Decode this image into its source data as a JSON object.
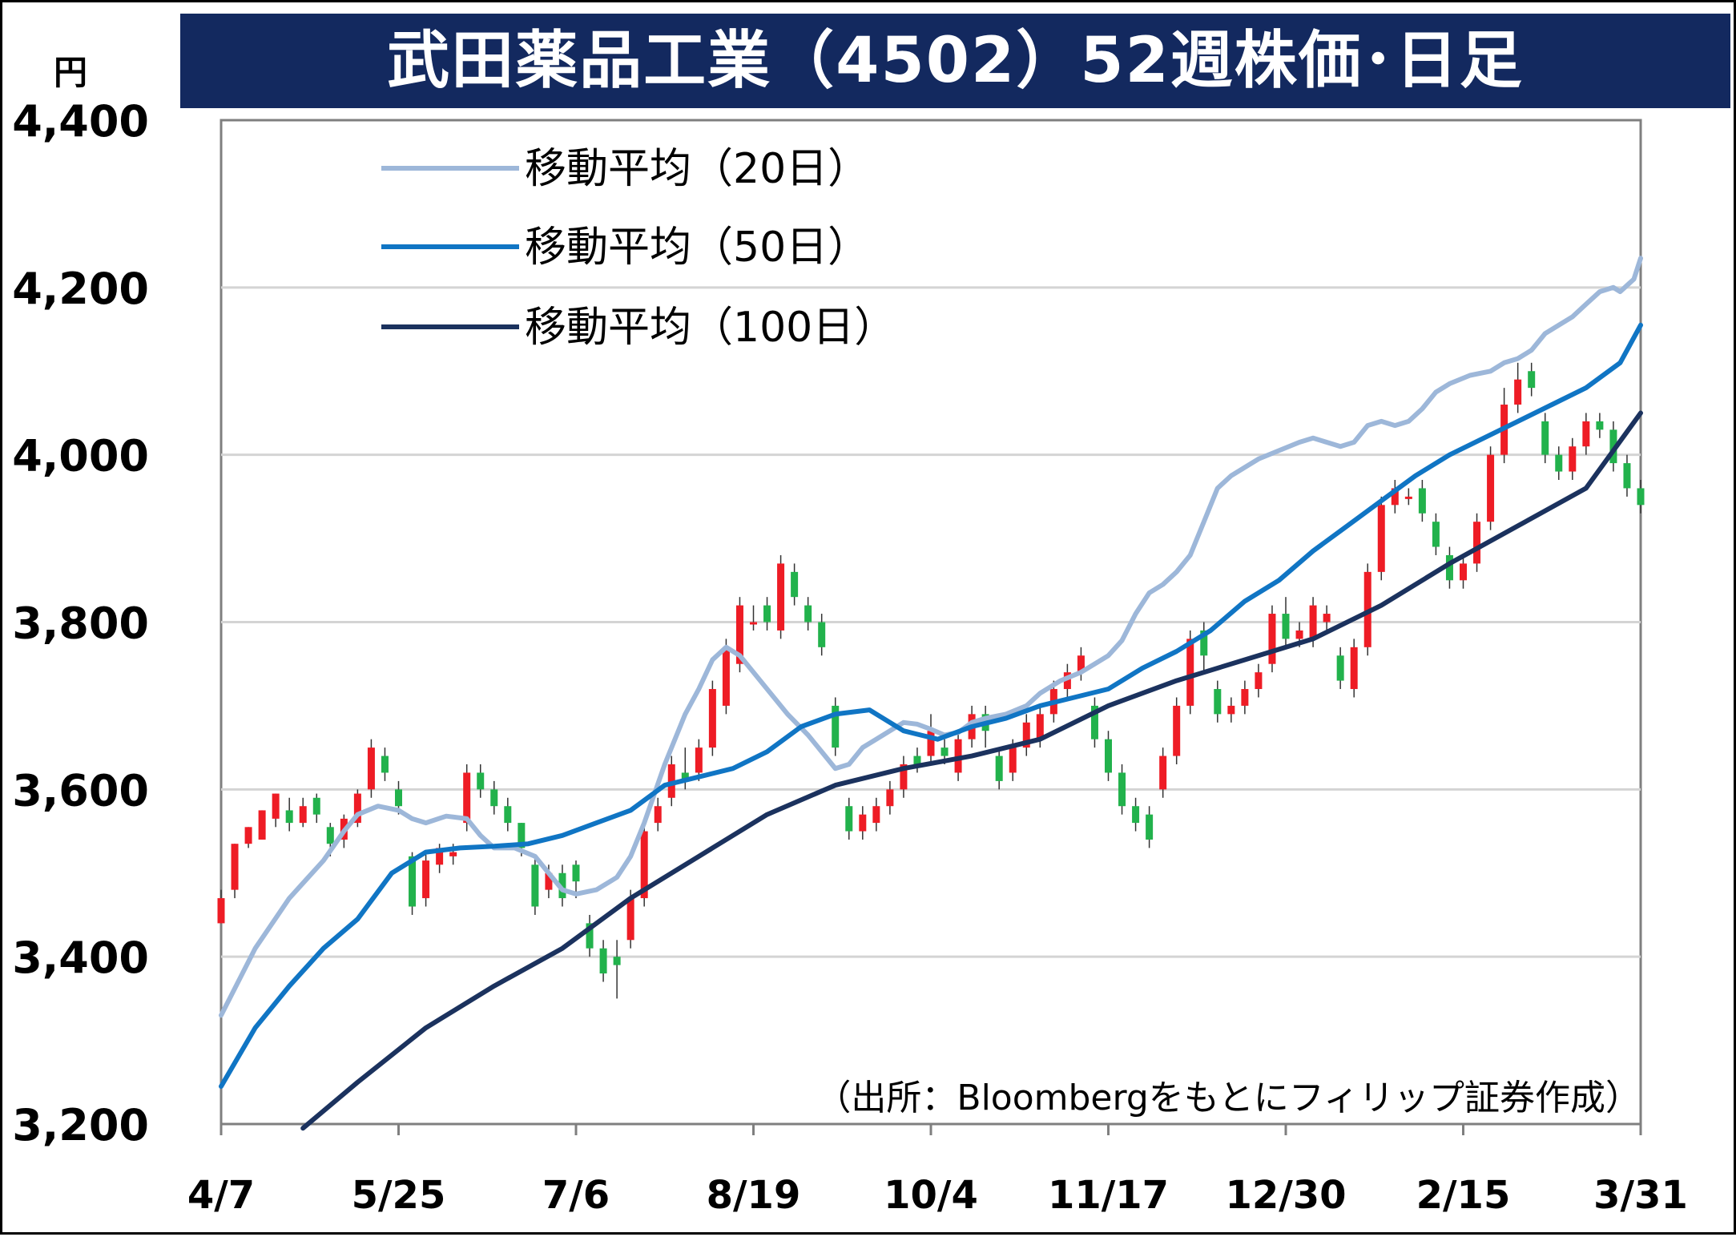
{
  "chart_data": {
    "type": "candlestick",
    "title": "武田薬品工業（4502）52週株価･日足",
    "unit": "円",
    "ylim": [
      3200,
      4400
    ],
    "yticks": [
      "3,200",
      "3,400",
      "3,600",
      "3,800",
      "4,000",
      "4,200",
      "4,400"
    ],
    "ytick_values": [
      3200,
      3400,
      3600,
      3800,
      4000,
      4200,
      4400
    ],
    "xticks": [
      "4/7",
      "5/25",
      "7/6",
      "8/19",
      "10/4",
      "11/17",
      "12/30",
      "2/15",
      "3/31"
    ],
    "grid": true,
    "legend_position": "top-left",
    "series": [
      {
        "name": "移動平均（20日）",
        "color": "#9db7d9",
        "values": [
          [
            0,
            3330
          ],
          [
            5,
            3410
          ],
          [
            10,
            3470
          ],
          [
            15,
            3515
          ],
          [
            18,
            3550
          ],
          [
            20,
            3570
          ],
          [
            23,
            3580
          ],
          [
            26,
            3575
          ],
          [
            28,
            3565
          ],
          [
            30,
            3560
          ],
          [
            33,
            3568
          ],
          [
            36,
            3565
          ],
          [
            38,
            3545
          ],
          [
            40,
            3530
          ],
          [
            43,
            3530
          ],
          [
            46,
            3520
          ],
          [
            48,
            3500
          ],
          [
            50,
            3480
          ],
          [
            52,
            3475
          ],
          [
            55,
            3480
          ],
          [
            58,
            3495
          ],
          [
            60,
            3520
          ],
          [
            62,
            3560
          ],
          [
            65,
            3630
          ],
          [
            68,
            3690
          ],
          [
            70,
            3720
          ],
          [
            72,
            3755
          ],
          [
            74,
            3770
          ],
          [
            76,
            3760
          ],
          [
            78,
            3740
          ],
          [
            80,
            3720
          ],
          [
            83,
            3690
          ],
          [
            86,
            3665
          ],
          [
            88,
            3645
          ],
          [
            90,
            3625
          ],
          [
            92,
            3630
          ],
          [
            94,
            3650
          ],
          [
            96,
            3660
          ],
          [
            98,
            3670
          ],
          [
            100,
            3680
          ],
          [
            102,
            3678
          ],
          [
            104,
            3672
          ],
          [
            106,
            3665
          ],
          [
            108,
            3668
          ],
          [
            110,
            3680
          ],
          [
            112,
            3685
          ],
          [
            115,
            3690
          ],
          [
            118,
            3700
          ],
          [
            120,
            3715
          ],
          [
            123,
            3730
          ],
          [
            126,
            3740
          ],
          [
            128,
            3750
          ],
          [
            130,
            3760
          ],
          [
            132,
            3778
          ],
          [
            134,
            3810
          ],
          [
            136,
            3835
          ],
          [
            138,
            3845
          ],
          [
            140,
            3860
          ],
          [
            142,
            3880
          ],
          [
            144,
            3920
          ],
          [
            146,
            3960
          ],
          [
            148,
            3975
          ],
          [
            150,
            3985
          ],
          [
            152,
            3995
          ],
          [
            155,
            4005
          ],
          [
            158,
            4015
          ],
          [
            160,
            4020
          ],
          [
            162,
            4015
          ],
          [
            164,
            4010
          ],
          [
            166,
            4015
          ],
          [
            168,
            4035
          ],
          [
            170,
            4040
          ],
          [
            172,
            4035
          ],
          [
            174,
            4040
          ],
          [
            176,
            4055
          ],
          [
            178,
            4075
          ],
          [
            180,
            4085
          ],
          [
            183,
            4095
          ],
          [
            186,
            4100
          ],
          [
            188,
            4110
          ],
          [
            190,
            4115
          ],
          [
            192,
            4125
          ],
          [
            194,
            4145
          ],
          [
            196,
            4155
          ],
          [
            198,
            4165
          ],
          [
            200,
            4180
          ],
          [
            202,
            4195
          ],
          [
            204,
            4200
          ],
          [
            205,
            4195
          ],
          [
            207,
            4210
          ],
          [
            208,
            4235
          ]
        ]
      },
      {
        "name": "移動平均（50日）",
        "color": "#1075c4",
        "values": [
          [
            0,
            3245
          ],
          [
            5,
            3315
          ],
          [
            10,
            3365
          ],
          [
            15,
            3410
          ],
          [
            20,
            3445
          ],
          [
            25,
            3500
          ],
          [
            30,
            3525
          ],
          [
            35,
            3530
          ],
          [
            40,
            3532
          ],
          [
            45,
            3535
          ],
          [
            50,
            3545
          ],
          [
            55,
            3560
          ],
          [
            60,
            3575
          ],
          [
            65,
            3605
          ],
          [
            70,
            3615
          ],
          [
            75,
            3625
          ],
          [
            80,
            3645
          ],
          [
            85,
            3675
          ],
          [
            90,
            3690
          ],
          [
            95,
            3695
          ],
          [
            100,
            3670
          ],
          [
            105,
            3660
          ],
          [
            110,
            3675
          ],
          [
            115,
            3685
          ],
          [
            120,
            3700
          ],
          [
            125,
            3710
          ],
          [
            130,
            3720
          ],
          [
            135,
            3745
          ],
          [
            140,
            3765
          ],
          [
            145,
            3790
          ],
          [
            150,
            3825
          ],
          [
            155,
            3850
          ],
          [
            160,
            3885
          ],
          [
            165,
            3915
          ],
          [
            170,
            3945
          ],
          [
            175,
            3975
          ],
          [
            180,
            4000
          ],
          [
            185,
            4020
          ],
          [
            190,
            4040
          ],
          [
            195,
            4060
          ],
          [
            200,
            4080
          ],
          [
            205,
            4110
          ],
          [
            208,
            4155
          ]
        ]
      },
      {
        "name": "移動平均（100日）",
        "color": "#1b325e",
        "values": [
          [
            12,
            3195
          ],
          [
            20,
            3250
          ],
          [
            30,
            3315
          ],
          [
            40,
            3365
          ],
          [
            50,
            3410
          ],
          [
            60,
            3470
          ],
          [
            70,
            3520
          ],
          [
            80,
            3570
          ],
          [
            90,
            3605
          ],
          [
            100,
            3625
          ],
          [
            110,
            3640
          ],
          [
            120,
            3660
          ],
          [
            130,
            3700
          ],
          [
            140,
            3730
          ],
          [
            150,
            3755
          ],
          [
            160,
            3780
          ],
          [
            170,
            3820
          ],
          [
            180,
            3870
          ],
          [
            190,
            3915
          ],
          [
            200,
            3960
          ],
          [
            208,
            4050
          ]
        ]
      }
    ],
    "candles_ohlc": [
      [
        0,
        3440,
        3470,
        3440,
        3480
      ],
      [
        2,
        3480,
        3535,
        3470,
        3535
      ],
      [
        4,
        3535,
        3555,
        3530,
        3555
      ],
      [
        6,
        3540,
        3575,
        3540,
        3575
      ],
      [
        8,
        3565,
        3595,
        3555,
        3595
      ],
      [
        10,
        3575,
        3560,
        3550,
        3590
      ],
      [
        12,
        3560,
        3580,
        3555,
        3590
      ],
      [
        14,
        3590,
        3570,
        3560,
        3595
      ],
      [
        16,
        3555,
        3535,
        3520,
        3560
      ],
      [
        18,
        3540,
        3565,
        3530,
        3570
      ],
      [
        20,
        3560,
        3595,
        3555,
        3600
      ],
      [
        22,
        3600,
        3650,
        3590,
        3660
      ],
      [
        24,
        3640,
        3620,
        3610,
        3650
      ],
      [
        26,
        3600,
        3580,
        3570,
        3610
      ],
      [
        28,
        3520,
        3460,
        3450,
        3525
      ],
      [
        30,
        3470,
        3515,
        3460,
        3525
      ],
      [
        32,
        3510,
        3530,
        3500,
        3535
      ],
      [
        34,
        3520,
        3525,
        3510,
        3535
      ],
      [
        36,
        3560,
        3620,
        3550,
        3630
      ],
      [
        38,
        3620,
        3600,
        3590,
        3630
      ],
      [
        40,
        3600,
        3580,
        3570,
        3610
      ],
      [
        42,
        3580,
        3560,
        3550,
        3590
      ],
      [
        44,
        3560,
        3530,
        3520,
        3560
      ],
      [
        46,
        3510,
        3460,
        3450,
        3520
      ],
      [
        48,
        3480,
        3500,
        3470,
        3510
      ],
      [
        50,
        3500,
        3470,
        3460,
        3510
      ],
      [
        52,
        3510,
        3490,
        3470,
        3515
      ],
      [
        54,
        3440,
        3410,
        3400,
        3450
      ],
      [
        56,
        3410,
        3380,
        3370,
        3420
      ],
      [
        58,
        3400,
        3390,
        3350,
        3420
      ],
      [
        60,
        3420,
        3470,
        3410,
        3480
      ],
      [
        62,
        3470,
        3550,
        3460,
        3560
      ],
      [
        64,
        3560,
        3580,
        3550,
        3590
      ],
      [
        66,
        3590,
        3630,
        3580,
        3640
      ],
      [
        68,
        3620,
        3610,
        3600,
        3650
      ],
      [
        70,
        3620,
        3650,
        3610,
        3660
      ],
      [
        72,
        3650,
        3720,
        3640,
        3730
      ],
      [
        74,
        3700,
        3770,
        3690,
        3780
      ],
      [
        76,
        3750,
        3820,
        3740,
        3830
      ],
      [
        78,
        3800,
        3800,
        3790,
        3820
      ],
      [
        80,
        3820,
        3800,
        3790,
        3830
      ],
      [
        82,
        3790,
        3870,
        3780,
        3880
      ],
      [
        84,
        3860,
        3830,
        3820,
        3870
      ],
      [
        86,
        3820,
        3800,
        3790,
        3830
      ],
      [
        88,
        3800,
        3770,
        3760,
        3810
      ],
      [
        90,
        3700,
        3650,
        3640,
        3710
      ],
      [
        92,
        3580,
        3550,
        3540,
        3590
      ],
      [
        94,
        3550,
        3570,
        3540,
        3580
      ],
      [
        96,
        3560,
        3580,
        3550,
        3590
      ],
      [
        98,
        3580,
        3600,
        3570,
        3610
      ],
      [
        100,
        3600,
        3630,
        3590,
        3640
      ],
      [
        102,
        3640,
        3630,
        3620,
        3650
      ],
      [
        104,
        3640,
        3670,
        3630,
        3690
      ],
      [
        106,
        3650,
        3640,
        3630,
        3660
      ],
      [
        108,
        3620,
        3660,
        3610,
        3670
      ],
      [
        110,
        3660,
        3690,
        3650,
        3700
      ],
      [
        112,
        3690,
        3670,
        3650,
        3700
      ],
      [
        114,
        3640,
        3610,
        3600,
        3650
      ],
      [
        116,
        3620,
        3650,
        3610,
        3660
      ],
      [
        118,
        3650,
        3680,
        3640,
        3690
      ],
      [
        120,
        3660,
        3690,
        3650,
        3700
      ],
      [
        122,
        3690,
        3720,
        3680,
        3730
      ],
      [
        124,
        3720,
        3740,
        3710,
        3750
      ],
      [
        126,
        3740,
        3760,
        3730,
        3770
      ],
      [
        128,
        3700,
        3660,
        3650,
        3710
      ],
      [
        130,
        3660,
        3620,
        3610,
        3670
      ],
      [
        132,
        3620,
        3580,
        3570,
        3630
      ],
      [
        134,
        3580,
        3560,
        3550,
        3590
      ],
      [
        136,
        3570,
        3540,
        3530,
        3580
      ],
      [
        138,
        3600,
        3640,
        3590,
        3650
      ],
      [
        140,
        3640,
        3700,
        3630,
        3710
      ],
      [
        142,
        3700,
        3780,
        3690,
        3790
      ],
      [
        144,
        3790,
        3760,
        3740,
        3800
      ],
      [
        146,
        3720,
        3690,
        3680,
        3730
      ],
      [
        148,
        3690,
        3700,
        3680,
        3710
      ],
      [
        150,
        3700,
        3720,
        3690,
        3730
      ],
      [
        152,
        3720,
        3740,
        3710,
        3750
      ],
      [
        154,
        3750,
        3810,
        3740,
        3820
      ],
      [
        156,
        3810,
        3780,
        3770,
        3830
      ],
      [
        158,
        3780,
        3790,
        3770,
        3800
      ],
      [
        160,
        3780,
        3820,
        3770,
        3830
      ],
      [
        162,
        3800,
        3810,
        3790,
        3820
      ],
      [
        164,
        3760,
        3730,
        3720,
        3770
      ],
      [
        166,
        3720,
        3770,
        3710,
        3780
      ],
      [
        168,
        3770,
        3860,
        3760,
        3870
      ],
      [
        170,
        3860,
        3940,
        3850,
        3950
      ],
      [
        172,
        3940,
        3960,
        3930,
        3970
      ],
      [
        174,
        3950,
        3950,
        3940,
        3960
      ],
      [
        176,
        3960,
        3930,
        3920,
        3970
      ],
      [
        178,
        3920,
        3890,
        3880,
        3930
      ],
      [
        180,
        3880,
        3850,
        3840,
        3890
      ],
      [
        182,
        3850,
        3870,
        3840,
        3880
      ],
      [
        184,
        3870,
        3920,
        3860,
        3930
      ],
      [
        186,
        3920,
        4000,
        3910,
        4010
      ],
      [
        188,
        4000,
        4060,
        3990,
        4080
      ],
      [
        190,
        4060,
        4090,
        4050,
        4110
      ],
      [
        192,
        4100,
        4080,
        4070,
        4110
      ],
      [
        194,
        4040,
        4000,
        3990,
        4050
      ],
      [
        196,
        4000,
        3980,
        3970,
        4010
      ],
      [
        198,
        3980,
        4010,
        3970,
        4020
      ],
      [
        200,
        4010,
        4040,
        4000,
        4050
      ],
      [
        202,
        4040,
        4030,
        4020,
        4050
      ],
      [
        204,
        4030,
        3990,
        3980,
        4040
      ],
      [
        206,
        3990,
        3960,
        3950,
        4000
      ],
      [
        208,
        3960,
        3940,
        3930,
        3970
      ]
    ]
  },
  "legend": {
    "ma20": "移動平均（20日）",
    "ma50": "移動平均（50日）",
    "ma100": "移動平均（100日）"
  },
  "source": "（出所：Bloombergをもとにフィリップ証券作成）",
  "colors": {
    "title_bg": "#13295f",
    "up": "#ee1c25",
    "down": "#22b24c",
    "grid": "#d4d4d4",
    "axis": "#7f7f7f"
  }
}
